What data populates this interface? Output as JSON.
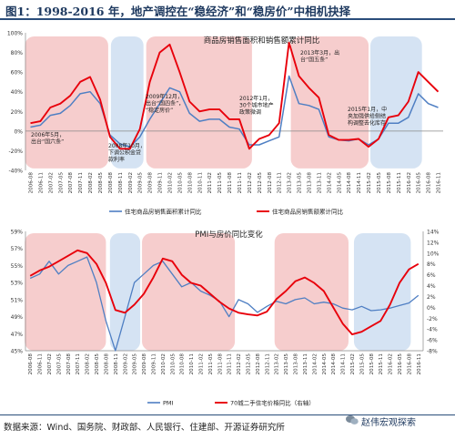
{
  "page": {
    "title": "图1：1998-2016 年，地产调控在“稳经济”和“稳房价”中相机抉择",
    "source": "数据来源：Wind、国务院、财政部、人民银行、住建部、开源证券研究所",
    "watermark": "赵伟宏观探索",
    "colors": {
      "red": "#e8000b",
      "blue": "#4f7fc3",
      "shade_pink": "#f6cdcd",
      "shade_blue": "#d5e3f3",
      "title_blue": "#1f3a60"
    }
  },
  "chart_data": [
    {
      "type": "line",
      "title": "商品房销售面积和销售额累计同比",
      "x_labels": [
        "2006-08",
        "2006-11",
        "2007-02",
        "2007-05",
        "2007-08",
        "2007-11",
        "2008-02",
        "2008-05",
        "2008-08",
        "2008-11",
        "2009-02",
        "2009-05",
        "2009-08",
        "2009-11",
        "2010-02",
        "2010-05",
        "2010-08",
        "2010-11",
        "2011-02",
        "2011-05",
        "2011-08",
        "2011-11",
        "2012-02",
        "2012-05",
        "2012-08",
        "2012-11",
        "2013-02",
        "2013-05",
        "2013-08",
        "2013-11",
        "2014-02",
        "2014-05",
        "2014-08",
        "2014-11",
        "2015-02",
        "2015-05",
        "2015-08",
        "2015-11",
        "2016-02",
        "2016-05",
        "2016-08",
        "2016-11"
      ],
      "y_ticks": [
        "100%",
        "80%",
        "60%",
        "40%",
        "20%",
        "0%",
        "-20%",
        "-40%"
      ],
      "ylim": [
        -40,
        100
      ],
      "legend": [
        "住宅商品房销售面积累计同比",
        "住宅商品房销售额累计同比"
      ],
      "series": [
        {
          "name": "住宅商品房销售面积累计同比",
          "values": [
            4,
            6,
            16,
            18,
            26,
            38,
            40,
            28,
            -4,
            -13,
            -16,
            -6,
            12,
            28,
            44,
            40,
            18,
            10,
            12,
            12,
            4,
            2,
            -14,
            -14,
            -10,
            -6,
            56,
            28,
            26,
            22,
            -6,
            -9,
            -10,
            -8,
            -14,
            -8,
            8,
            8,
            14,
            38,
            28,
            24
          ]
        },
        {
          "name": "住宅商品房销售额累计同比",
          "values": [
            8,
            10,
            24,
            28,
            36,
            50,
            55,
            32,
            -6,
            -18,
            -18,
            2,
            50,
            80,
            88,
            60,
            30,
            20,
            22,
            22,
            12,
            12,
            -18,
            -8,
            -4,
            8,
            90,
            56,
            44,
            34,
            -4,
            -9,
            -9,
            -8,
            -16,
            -8,
            14,
            16,
            30,
            60,
            50,
            40
          ]
        }
      ],
      "annotations": [
        "2006年5月，出台“国六条”",
        "2008年10月，下调公积金贷款利率",
        "2009年12月，出台“国四条”，“稳定房价”",
        "2012年1月，30个城市地产政策微调",
        "2013年3月，出台“国五条”",
        "2015年1月，中央加强供给侧结构调整去化库存"
      ]
    },
    {
      "type": "line",
      "title": "PMI与房价同比变化",
      "x_labels": [
        "2006-08",
        "2006-11",
        "2007-02",
        "2007-05",
        "2007-08",
        "2007-11",
        "2008-02",
        "2008-05",
        "2008-08",
        "2008-11",
        "2009-02",
        "2009-05",
        "2009-08",
        "2009-11",
        "2010-02",
        "2010-05",
        "2010-08",
        "2010-11",
        "2011-02",
        "2011-05",
        "2011-08",
        "2011-11",
        "2012-02",
        "2012-05",
        "2012-08",
        "2012-11",
        "2013-02",
        "2013-05",
        "2013-08",
        "2013-11",
        "2014-02",
        "2014-05",
        "2014-08",
        "2014-11",
        "2015-02",
        "2015-05",
        "2015-08",
        "2015-11",
        "2016-02",
        "2016-05",
        "2016-08",
        "2016-11"
      ],
      "y_ticks_left": [
        "59%",
        "57%",
        "55%",
        "53%",
        "51%",
        "49%",
        "47%",
        "45%"
      ],
      "ylim_left": [
        45,
        59
      ],
      "y_ticks_right": [
        "14%",
        "12%",
        "10%",
        "8%",
        "6%",
        "4%",
        "2%",
        "0%",
        "-2%",
        "-4%",
        "-6%",
        "-8%"
      ],
      "ylim_right": [
        -8,
        14
      ],
      "legend": [
        "PMI",
        "70城二手住宅价格同比（右轴）"
      ],
      "series": [
        {
          "name": "PMI",
          "axis": "left",
          "values": [
            53.5,
            54.0,
            55.5,
            54.0,
            55.0,
            55.5,
            56.0,
            53.0,
            48.5,
            38.8,
            49.0,
            53.0,
            54.0,
            55.0,
            55.5,
            54.0,
            52.5,
            53.0,
            52.0,
            51.5,
            50.8,
            49.0,
            51.0,
            50.5,
            49.5,
            50.2,
            50.8,
            50.5,
            51.0,
            51.2,
            50.5,
            50.7,
            50.5,
            50.0,
            49.8,
            50.2,
            49.7,
            49.8,
            50.0,
            50.3,
            50.6,
            51.5
          ]
        },
        {
          "name": "70城二手住宅价格同比（右轴）",
          "axis": "right",
          "values": [
            5.8,
            6.8,
            7.5,
            8.5,
            9.5,
            10.5,
            10.0,
            8.0,
            4.5,
            -0.5,
            -1.0,
            0.5,
            2.5,
            5.5,
            9.0,
            8.5,
            6.0,
            4.5,
            4.0,
            2.5,
            1.0,
            -0.2,
            -1.0,
            -1.3,
            -1.5,
            -0.8,
            1.5,
            3.0,
            4.8,
            5.5,
            4.5,
            3.0,
            0.0,
            -3.0,
            -5.0,
            -4.5,
            -3.5,
            -2.5,
            0.5,
            4.5,
            7.0,
            8.0
          ]
        }
      ]
    }
  ]
}
